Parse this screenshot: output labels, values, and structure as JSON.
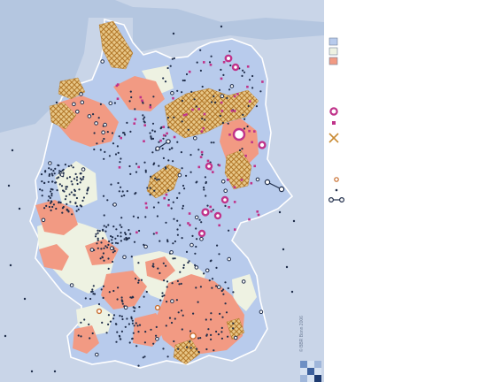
{
  "map": {
    "credit": "© BBR Bonn 2006",
    "colors": {
      "sea": "#b4c6e0",
      "land_outside": "#c9d5e8",
      "growth": "#b8cbec",
      "stable": "#eef2e2",
      "decline": "#f29a83",
      "hatch": "#d9a24a",
      "border": "#ffffff",
      "city_large": "#c0338a",
      "city_small": "#1f2d4a"
    }
  },
  "legend": {
    "items": [
      {
        "icon": "swatch-blue-icon",
        "label": ""
      },
      {
        "icon": "swatch-white-icon",
        "label": ""
      },
      {
        "icon": "swatch-red-icon",
        "label": ""
      },
      {
        "icon": "large-magenta-ring-icon",
        "label": ""
      },
      {
        "icon": "small-magenta-square-icon",
        "label": ""
      },
      {
        "icon": "crosshatch-symbol-icon",
        "label": ""
      },
      {
        "icon": "small-ring-icon",
        "label": ""
      },
      {
        "icon": "dot-icon",
        "label": ""
      },
      {
        "icon": "connected-rings-icon",
        "label": ""
      }
    ]
  },
  "logo": {
    "icon": "bbr-logo-icon"
  }
}
